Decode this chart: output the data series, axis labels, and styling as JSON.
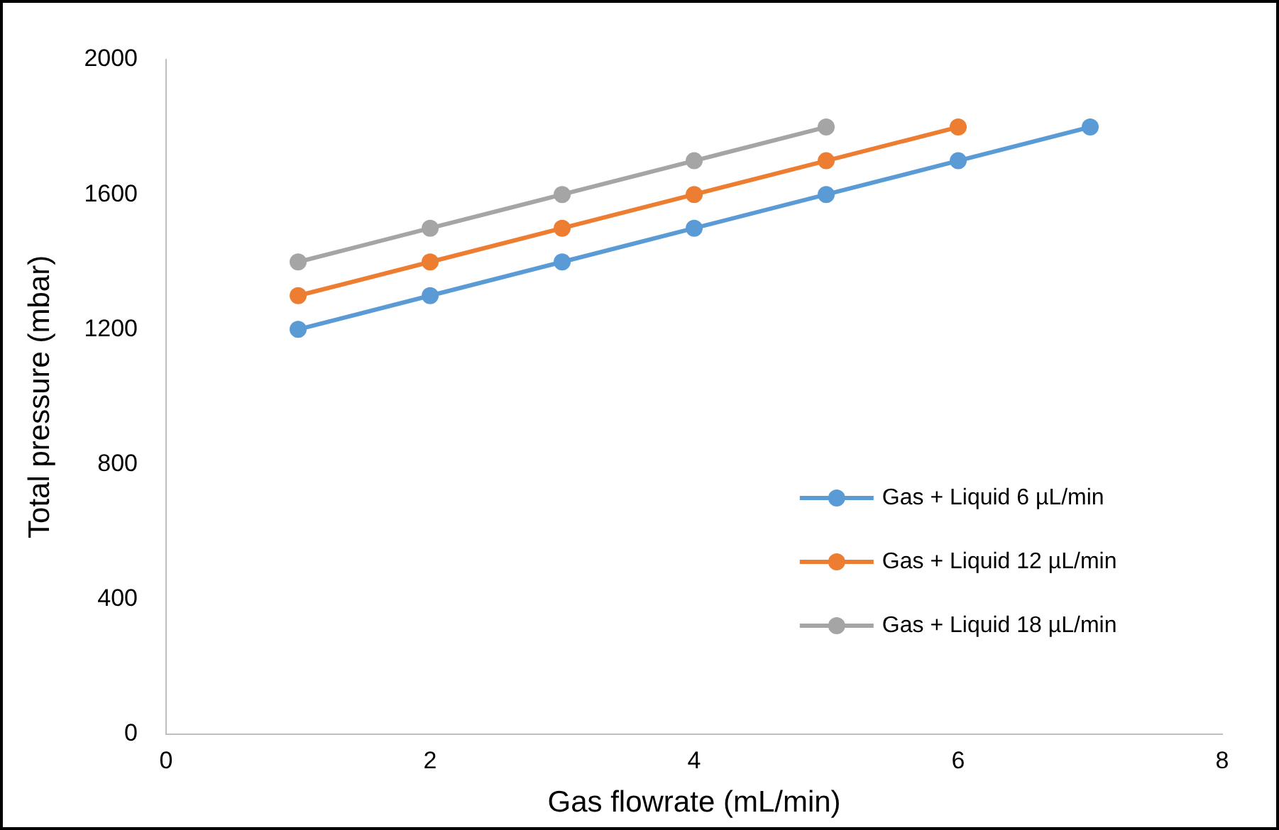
{
  "chart_data": {
    "type": "line",
    "xlabel": "Gas flowrate (mL/min)",
    "ylabel": "Total pressure (mbar)",
    "xlim": [
      0,
      8
    ],
    "xticks": [
      0,
      2,
      4,
      6,
      8
    ],
    "ylim": [
      0,
      2000
    ],
    "yticks": [
      0,
      400,
      800,
      1200,
      1600,
      2000
    ],
    "grid": false,
    "legend": "right",
    "marker": "circle",
    "line_style": "solid",
    "series": [
      {
        "name": "Gas + Liquid 6 µL/min",
        "color": "#5b9bd5",
        "x": [
          1,
          2,
          3,
          4,
          5,
          6,
          7
        ],
        "values": [
          1200,
          1300,
          1400,
          1500,
          1600,
          1700,
          1800
        ]
      },
      {
        "name": "Gas + Liquid 12 µL/min",
        "color": "#ed7d31",
        "x": [
          1,
          2,
          3,
          4,
          5,
          6
        ],
        "values": [
          1300,
          1400,
          1500,
          1600,
          1700,
          1800
        ]
      },
      {
        "name": "Gas + Liquid 18 µL/min",
        "color": "#a5a5a5",
        "x": [
          1,
          2,
          3,
          4,
          5
        ],
        "values": [
          1400,
          1500,
          1600,
          1700,
          1800
        ]
      }
    ]
  }
}
